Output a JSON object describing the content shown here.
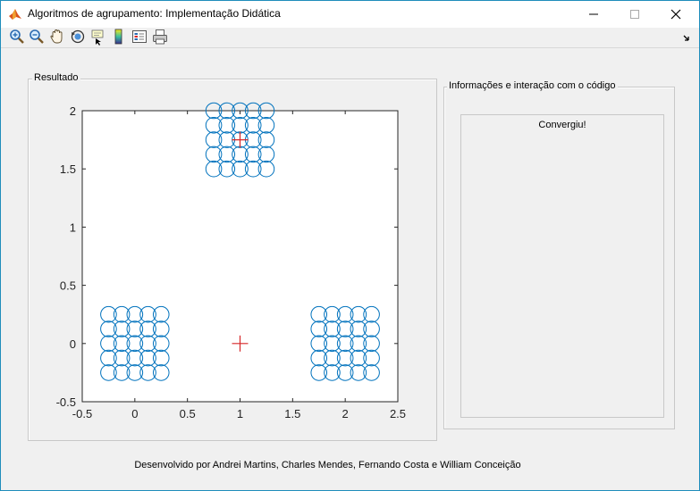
{
  "window": {
    "title": "Algoritmos de agrupamento: Implementação Didática"
  },
  "toolbar": {
    "tools": [
      "zoom-in-icon",
      "zoom-out-icon",
      "pan-hand-icon",
      "rotate-3d-icon",
      "data-cursor-icon",
      "colorbar-icon",
      "legend-icon",
      "print-icon"
    ]
  },
  "result_panel": {
    "title": "Resultado"
  },
  "info_panel": {
    "title": "Informações e interação com o código",
    "status": "Convergiu!"
  },
  "footer": {
    "credits": "Desenvolvido por Andrei Martins, Charles Mendes, Fernando Costa e William Conceição"
  },
  "colors": {
    "points": "#0072bd",
    "centroids": "#d62728",
    "title_accent": "#1f8dbb"
  },
  "chart_data": {
    "type": "scatter",
    "title": "",
    "xlabel": "",
    "ylabel": "",
    "xlim": [
      -0.5,
      2.5
    ],
    "ylim": [
      -0.5,
      2
    ],
    "xticks": [
      "-0.5",
      "0",
      "0.5",
      "1",
      "1.5",
      "2",
      "2.5"
    ],
    "yticks": [
      "-0.5",
      "0",
      "0.5",
      "1",
      "1.5",
      "2"
    ],
    "grid": false,
    "series": [
      {
        "marker": "circle",
        "x": [
          -0.25,
          -0.125,
          0,
          0.125,
          0.25,
          -0.25,
          -0.125,
          0,
          0.125,
          0.25,
          -0.25,
          -0.125,
          0,
          0.125,
          0.25,
          -0.25,
          -0.125,
          0,
          0.125,
          0.25,
          -0.25,
          -0.125,
          0,
          0.125,
          0.25,
          1.75,
          1.875,
          2,
          2.125,
          2.25,
          1.75,
          1.875,
          2,
          2.125,
          2.25,
          1.75,
          1.875,
          2,
          2.125,
          2.25,
          1.75,
          1.875,
          2,
          2.125,
          2.25,
          1.75,
          1.875,
          2,
          2.125,
          2.25,
          0.75,
          0.875,
          1,
          1.125,
          1.25,
          0.75,
          0.875,
          1,
          1.125,
          1.25,
          0.75,
          0.875,
          1,
          1.125,
          1.25,
          0.75,
          0.875,
          1,
          1.125,
          1.25,
          0.75,
          0.875,
          1,
          1.125,
          1.25
        ],
        "y": [
          0.25,
          0.25,
          0.25,
          0.25,
          0.25,
          0.125,
          0.125,
          0.125,
          0.125,
          0.125,
          0,
          0,
          0,
          0,
          0,
          -0.125,
          -0.125,
          -0.125,
          -0.125,
          -0.125,
          -0.25,
          -0.25,
          -0.25,
          -0.25,
          -0.25,
          0.25,
          0.25,
          0.25,
          0.25,
          0.25,
          0.125,
          0.125,
          0.125,
          0.125,
          0.125,
          0,
          0,
          0,
          0,
          0,
          -0.125,
          -0.125,
          -0.125,
          -0.125,
          -0.125,
          -0.25,
          -0.25,
          -0.25,
          -0.25,
          -0.25,
          2,
          2,
          2,
          2,
          2,
          1.875,
          1.875,
          1.875,
          1.875,
          1.875,
          1.75,
          1.75,
          1.75,
          1.75,
          1.75,
          1.625,
          1.625,
          1.625,
          1.625,
          1.625,
          1.5,
          1.5,
          1.5,
          1.5,
          1.5
        ]
      },
      {
        "marker": "plus",
        "x": [
          1,
          1
        ],
        "y": [
          1.75,
          0
        ]
      }
    ]
  }
}
